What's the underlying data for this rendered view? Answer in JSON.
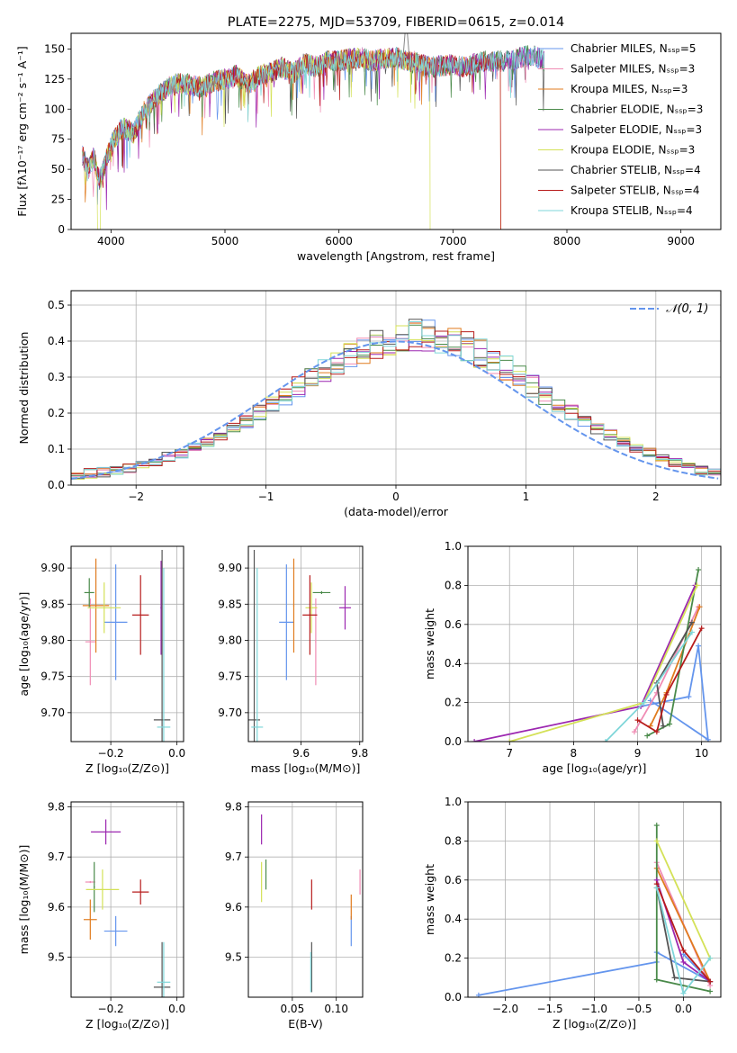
{
  "colors": {
    "chabrier_miles": "#6495ED",
    "salpeter_miles": "#F08CB4",
    "kroupa_miles": "#E07B1E",
    "chabrier_elodie": "#4A8A4A",
    "salpeter_elodie": "#9C27B0",
    "kroupa_elodie": "#D4E157",
    "chabrier_stelib": "#555555",
    "salpeter_stelib": "#B71C1C",
    "kroupa_stelib": "#7FD6D9",
    "normal_curve": "#6495ED"
  },
  "chart_data": [
    {
      "id": "spectrum",
      "type": "line",
      "title": "PLATE=2275, MJD=53709, FIBERID=0615, z=0.014",
      "xlabel": "wavelength [Angstrom, rest frame]",
      "ylabel": "Flux [fλ10⁻¹⁷ erg cm⁻² s⁻¹ A⁻¹]",
      "xlim": [
        3650,
        9350
      ],
      "ylim": [
        0,
        163
      ],
      "xticks": [
        4000,
        5000,
        6000,
        7000,
        8000,
        9000
      ],
      "yticks": [
        0,
        25,
        50,
        75,
        100,
        125,
        150
      ],
      "legend_position": "top-right",
      "legend": [
        "Chabrier MILES, N_SSP=5",
        "Salpeter MILES, N_SSP=3",
        "Kroupa MILES, N_SSP=3",
        "Chabrier ELODIE, N_SSP=3",
        "Salpeter ELODIE, N_SSP=3",
        "Kroupa ELODIE, N_SSP=3",
        "Chabrier STELIB, N_SSP=4",
        "Salpeter STELIB, N_SSP=4",
        "Kroupa STELIB, N_SSP=4"
      ],
      "envelope": {
        "x": [
          3750,
          3800,
          3850,
          3900,
          3950,
          4000,
          4100,
          4200,
          4300,
          4400,
          4500,
          4600,
          4700,
          4800,
          4900,
          5000,
          5100,
          5200,
          5300,
          5400,
          5500,
          5600,
          5700,
          5800,
          5900,
          6000,
          6100,
          6200,
          6300,
          6400,
          6500,
          6600,
          6700,
          6800,
          6900,
          7000,
          7100,
          7200,
          7300,
          7400,
          7500,
          7600,
          7700,
          7800
        ],
        "y": [
          62,
          50,
          60,
          40,
          55,
          70,
          85,
          80,
          100,
          110,
          118,
          122,
          120,
          118,
          123,
          125,
          128,
          120,
          128,
          130,
          135,
          130,
          138,
          135,
          140,
          140,
          142,
          143,
          140,
          142,
          143,
          140,
          138,
          135,
          136,
          137,
          135,
          138,
          140,
          140,
          140,
          143,
          145,
          140
        ]
      },
      "notes": [
        "Kroupa ELODIE drops to 0 near 3900 and 6800",
        "Kroupa MILES / Salpeter STELIB drop to 0 near 7420",
        "Grey spike near 6600 rising above the plot"
      ]
    },
    {
      "id": "residuals",
      "type": "histogram",
      "xlabel": "(data-model)/error",
      "ylabel": "Normed distribution",
      "xlim": [
        -2.5,
        2.5
      ],
      "ylim": [
        0,
        0.54
      ],
      "xticks": [
        -2,
        -1,
        0,
        1,
        2
      ],
      "yticks": [
        0.0,
        0.1,
        0.2,
        0.3,
        0.4,
        0.5
      ],
      "legend_position": "top-right",
      "legend": [
        "𝒩(0, 1)"
      ],
      "bin_edges_start": -2.5,
      "bin_width": 0.1,
      "series_heights": [
        [
          0.03,
          0.033,
          0.036,
          0.04,
          0.046,
          0.055,
          0.067,
          0.079,
          0.088,
          0.105,
          0.12,
          0.14,
          0.16,
          0.175,
          0.2,
          0.225,
          0.25,
          0.275,
          0.3,
          0.32,
          0.34,
          0.365,
          0.38,
          0.39,
          0.4,
          0.41,
          0.42,
          0.415,
          0.405,
          0.395,
          0.385,
          0.365,
          0.345,
          0.325,
          0.3,
          0.275,
          0.25,
          0.225,
          0.2,
          0.18,
          0.16,
          0.14,
          0.12,
          0.105,
          0.09,
          0.075,
          0.06,
          0.05,
          0.04,
          0.035
        ]
      ],
      "normal_curve": {
        "mean": 0,
        "sigma": 1
      }
    },
    {
      "id": "age_vs_Z",
      "type": "errorbar",
      "xlabel": "Z [log₁₀(Z/Z⊙)]",
      "ylabel": "age  [log₁₀(age/yr)]",
      "xlim": [
        -0.32,
        0.02
      ],
      "ylim": [
        9.66,
        9.93
      ],
      "xticks": [
        -0.2,
        0.0
      ],
      "yticks": [
        9.7,
        9.75,
        9.8,
        9.85,
        9.9
      ],
      "points": [
        {
          "x": -0.185,
          "y": 9.825,
          "xerr": 0.035,
          "yerr": 0.08,
          "c": "chabrier_miles"
        },
        {
          "x": -0.262,
          "y": 9.798,
          "xerr": 0.015,
          "yerr": 0.06,
          "c": "salpeter_miles"
        },
        {
          "x": -0.245,
          "y": 9.848,
          "xerr": 0.04,
          "yerr": 0.065,
          "c": "kroupa_miles"
        },
        {
          "x": -0.265,
          "y": 9.866,
          "xerr": 0.015,
          "yerr": 0.02,
          "c": "chabrier_elodie"
        },
        {
          "x": -0.048,
          "y": 9.845,
          "xerr": 0.002,
          "yerr": 0.065,
          "c": "salpeter_elodie"
        },
        {
          "x": -0.22,
          "y": 9.845,
          "xerr": 0.05,
          "yerr": 0.035,
          "c": "kroupa_elodie"
        },
        {
          "x": -0.045,
          "y": 9.69,
          "xerr": 0.025,
          "yerr": 0.235,
          "c": "chabrier_stelib"
        },
        {
          "x": -0.11,
          "y": 9.835,
          "xerr": 0.025,
          "yerr": 0.055,
          "c": "salpeter_stelib"
        },
        {
          "x": -0.04,
          "y": 9.68,
          "xerr": 0.02,
          "yerr": 0.22,
          "c": "kroupa_stelib"
        }
      ]
    },
    {
      "id": "age_vs_mass",
      "type": "errorbar",
      "xlabel": "mass [log₁₀(M/M⊙)]",
      "ylabel": "",
      "xlim": [
        9.42,
        9.81
      ],
      "ylim": [
        9.66,
        9.93
      ],
      "xticks": [
        9.6,
        9.8
      ],
      "yticks": [
        9.7,
        9.75,
        9.8,
        9.85,
        9.9
      ],
      "points": [
        {
          "x": 9.55,
          "y": 9.825,
          "xerr": 0.025,
          "yerr": 0.08,
          "c": "chabrier_miles"
        },
        {
          "x": 9.65,
          "y": 9.798,
          "xerr": 0.002,
          "yerr": 0.06,
          "c": "salpeter_miles"
        },
        {
          "x": 9.575,
          "y": 9.848,
          "xerr": 0.002,
          "yerr": 0.065,
          "c": "kroupa_miles"
        },
        {
          "x": 9.67,
          "y": 9.866,
          "xerr": 0.03,
          "yerr": 0.002,
          "c": "chabrier_elodie"
        },
        {
          "x": 9.75,
          "y": 9.845,
          "xerr": 0.02,
          "yerr": 0.03,
          "c": "salpeter_elodie"
        },
        {
          "x": 9.635,
          "y": 9.845,
          "xerr": 0.02,
          "yerr": 0.035,
          "c": "kroupa_elodie"
        },
        {
          "x": 9.44,
          "y": 9.69,
          "xerr": 0.02,
          "yerr": 0.235,
          "c": "chabrier_stelib"
        },
        {
          "x": 9.63,
          "y": 9.835,
          "xerr": 0.025,
          "yerr": 0.055,
          "c": "salpeter_stelib"
        },
        {
          "x": 9.45,
          "y": 9.68,
          "xerr": 0.02,
          "yerr": 0.22,
          "c": "kroupa_stelib"
        }
      ]
    },
    {
      "id": "weight_vs_age",
      "type": "line",
      "xlabel": "age  [log₁₀(age/yr)]",
      "ylabel": "mass weight",
      "xlim": [
        6.35,
        10.3
      ],
      "ylim": [
        0,
        1.0
      ],
      "xticks": [
        7,
        8,
        9,
        10
      ],
      "yticks": [
        0.0,
        0.2,
        0.4,
        0.6,
        0.8,
        1.0
      ],
      "series": [
        {
          "c": "chabrier_miles",
          "points": [
            [
              9.05,
              0.18
            ],
            [
              9.8,
              0.23
            ],
            [
              9.95,
              0.49
            ],
            [
              10.1,
              0.01
            ],
            [
              9.2,
              0.21
            ]
          ]
        },
        {
          "c": "salpeter_miles",
          "points": [
            [
              8.95,
              0.05
            ],
            [
              9.3,
              0.25
            ],
            [
              9.95,
              0.69
            ]
          ]
        },
        {
          "c": "kroupa_miles",
          "points": [
            [
              9.2,
              0.08
            ],
            [
              9.45,
              0.25
            ],
            [
              9.97,
              0.69
            ]
          ]
        },
        {
          "c": "chabrier_elodie",
          "points": [
            [
              9.15,
              0.03
            ],
            [
              9.5,
              0.09
            ],
            [
              9.95,
              0.88
            ]
          ]
        },
        {
          "c": "salpeter_elodie",
          "points": [
            [
              6.45,
              0.0
            ],
            [
              9.05,
              0.18
            ],
            [
              9.9,
              0.8
            ]
          ]
        },
        {
          "c": "kroupa_elodie",
          "points": [
            [
              7.0,
              0.0
            ],
            [
              9.1,
              0.2
            ],
            [
              9.93,
              0.8
            ]
          ]
        },
        {
          "c": "chabrier_stelib",
          "points": [
            [
              9.4,
              0.08
            ],
            [
              9.3,
              0.3
            ],
            [
              9.85,
              0.61
            ]
          ]
        },
        {
          "c": "salpeter_stelib",
          "points": [
            [
              9.0,
              0.11
            ],
            [
              9.3,
              0.05
            ],
            [
              9.45,
              0.24
            ],
            [
              10.0,
              0.58
            ]
          ]
        },
        {
          "c": "kroupa_stelib",
          "points": [
            [
              8.5,
              0.0
            ],
            [
              9.1,
              0.2
            ],
            [
              9.85,
              0.56
            ]
          ]
        }
      ]
    },
    {
      "id": "mass_vs_Z",
      "type": "errorbar",
      "xlabel": "Z [log₁₀(Z/Z⊙)]",
      "ylabel": "mass [log₁₀(M/M⊙)]",
      "xlim": [
        -0.32,
        0.02
      ],
      "ylim": [
        9.42,
        9.81
      ],
      "xticks": [
        -0.2,
        0.0
      ],
      "yticks": [
        9.5,
        9.6,
        9.7,
        9.8
      ],
      "points": [
        {
          "x": -0.185,
          "y": 9.552,
          "xerr": 0.035,
          "yerr": 0.03,
          "c": "chabrier_miles"
        },
        {
          "x": -0.262,
          "y": 9.65,
          "xerr": 0.015,
          "yerr": 0.002,
          "c": "salpeter_miles"
        },
        {
          "x": -0.262,
          "y": 9.575,
          "xerr": 0.02,
          "yerr": 0.04,
          "c": "kroupa_miles"
        },
        {
          "x": -0.25,
          "y": 9.64,
          "xerr": 0.002,
          "yerr": 0.05,
          "c": "chabrier_elodie"
        },
        {
          "x": -0.215,
          "y": 9.75,
          "xerr": 0.045,
          "yerr": 0.025,
          "c": "salpeter_elodie"
        },
        {
          "x": -0.225,
          "y": 9.635,
          "xerr": 0.05,
          "yerr": 0.04,
          "c": "kroupa_elodie"
        },
        {
          "x": -0.045,
          "y": 9.44,
          "xerr": 0.025,
          "yerr": 0.09,
          "c": "chabrier_stelib"
        },
        {
          "x": -0.11,
          "y": 9.63,
          "xerr": 0.025,
          "yerr": 0.025,
          "c": "salpeter_stelib"
        },
        {
          "x": -0.04,
          "y": 9.45,
          "xerr": 0.02,
          "yerr": 0.08,
          "c": "kroupa_stelib"
        }
      ]
    },
    {
      "id": "mass_vs_ebv",
      "type": "errorbar",
      "xlabel": "E(B-V)",
      "ylabel": "",
      "xlim": [
        0.0,
        0.13
      ],
      "ylim": [
        9.42,
        9.81
      ],
      "xticks": [
        0.05,
        0.1
      ],
      "yticks": [
        9.5,
        9.6,
        9.7,
        9.8
      ],
      "points": [
        {
          "x": 0.117,
          "y": 9.552,
          "xerr": 0.0,
          "yerr": 0.03,
          "c": "chabrier_miles"
        },
        {
          "x": 0.127,
          "y": 9.65,
          "xerr": 0.0,
          "yerr": 0.025,
          "c": "salpeter_miles"
        },
        {
          "x": 0.117,
          "y": 9.6,
          "xerr": 0.0,
          "yerr": 0.025,
          "c": "kroupa_miles"
        },
        {
          "x": 0.02,
          "y": 9.665,
          "xerr": 0.0,
          "yerr": 0.03,
          "c": "chabrier_elodie"
        },
        {
          "x": 0.015,
          "y": 9.755,
          "xerr": 0.0,
          "yerr": 0.03,
          "c": "salpeter_elodie"
        },
        {
          "x": 0.015,
          "y": 9.65,
          "xerr": 0.0,
          "yerr": 0.04,
          "c": "kroupa_elodie"
        },
        {
          "x": 0.072,
          "y": 9.48,
          "xerr": 0.0,
          "yerr": 0.05,
          "c": "chabrier_stelib"
        },
        {
          "x": 0.072,
          "y": 9.625,
          "xerr": 0.0,
          "yerr": 0.03,
          "c": "salpeter_stelib"
        },
        {
          "x": 0.071,
          "y": 9.47,
          "xerr": 0.0,
          "yerr": 0.04,
          "c": "kroupa_stelib"
        }
      ]
    },
    {
      "id": "weight_vs_Z",
      "type": "line",
      "xlabel": "Z [log₁₀(Z/Z⊙)]",
      "ylabel": "mass weight",
      "xlim": [
        -2.42,
        0.42
      ],
      "ylim": [
        0,
        1.0
      ],
      "xticks": [
        -2.0,
        -1.5,
        -1.0,
        -0.5,
        0.0
      ],
      "yticks": [
        0.0,
        0.2,
        0.4,
        0.6,
        0.8,
        1.0
      ],
      "series": [
        {
          "c": "chabrier_miles",
          "points": [
            [
              -2.3,
              0.01
            ],
            [
              -0.3,
              0.18
            ],
            [
              -0.3,
              0.23
            ],
            [
              0.3,
              0.08
            ],
            [
              0.0,
              0.22
            ]
          ]
        },
        {
          "c": "salpeter_miles",
          "points": [
            [
              -0.3,
              0.69
            ],
            [
              0.3,
              0.06
            ]
          ]
        },
        {
          "c": "kroupa_miles",
          "points": [
            [
              -0.3,
              0.66
            ],
            [
              0.3,
              0.08
            ]
          ]
        },
        {
          "c": "chabrier_elodie",
          "points": [
            [
              -0.3,
              0.88
            ],
            [
              -0.3,
              0.09
            ],
            [
              0.3,
              0.03
            ]
          ]
        },
        {
          "c": "salpeter_elodie",
          "points": [
            [
              -0.3,
              0.6
            ],
            [
              0.0,
              0.18
            ],
            [
              0.3,
              0.08
            ]
          ]
        },
        {
          "c": "kroupa_elodie",
          "points": [
            [
              -0.3,
              0.8
            ],
            [
              0.3,
              0.2
            ]
          ]
        },
        {
          "c": "chabrier_stelib",
          "points": [
            [
              -0.3,
              0.56
            ],
            [
              -0.1,
              0.1
            ],
            [
              0.3,
              0.08
            ]
          ]
        },
        {
          "c": "salpeter_stelib",
          "points": [
            [
              -0.3,
              0.58
            ],
            [
              0.0,
              0.24
            ],
            [
              0.3,
              0.08
            ]
          ]
        },
        {
          "c": "kroupa_stelib",
          "points": [
            [
              -0.3,
              0.56
            ],
            [
              0.0,
              0.02
            ],
            [
              0.3,
              0.2
            ]
          ]
        }
      ]
    }
  ]
}
